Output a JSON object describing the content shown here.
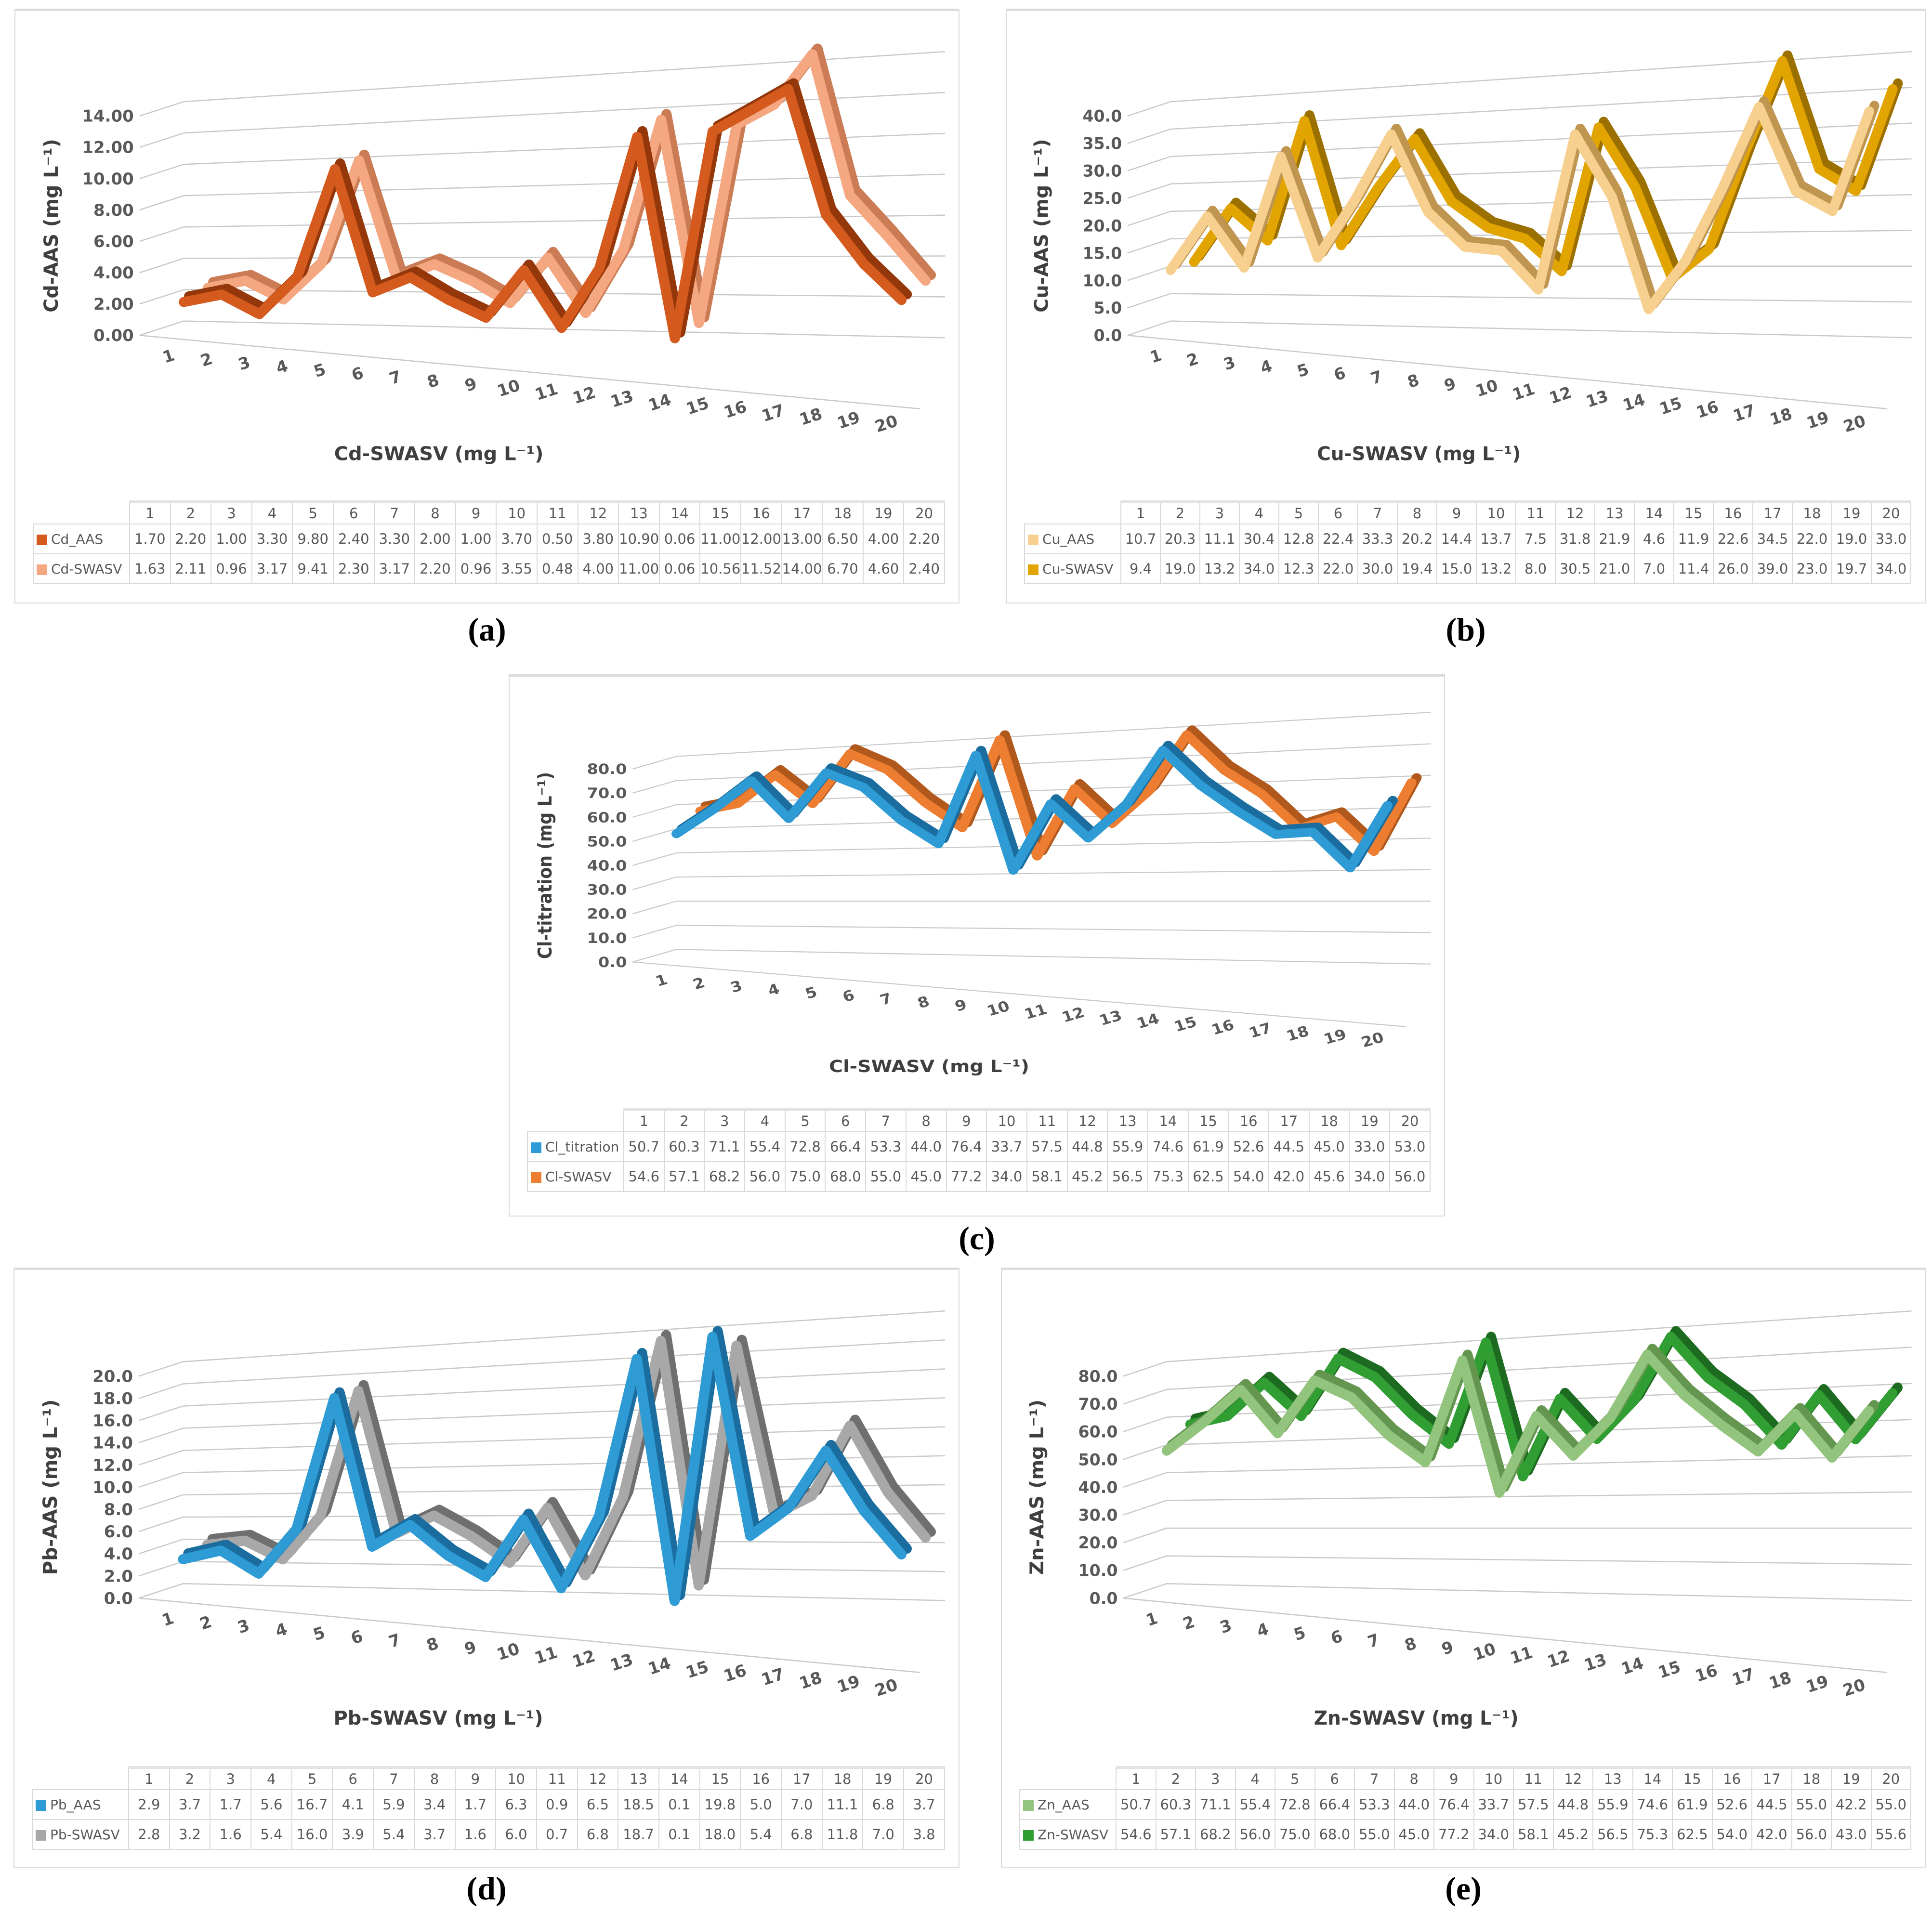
{
  "page": {
    "background": "#ffffff"
  },
  "chart_data": [
    {
      "type": "line",
      "variant": "3d-line",
      "panel_label": "(a)",
      "x_axis_title": "Cd-SWASV (mg L⁻¹)",
      "y_axis_title": "Cd-AAS (mg L⁻¹)",
      "categories": [
        "1",
        "2",
        "3",
        "4",
        "5",
        "6",
        "7",
        "8",
        "9",
        "10",
        "11",
        "12",
        "13",
        "14",
        "15",
        "16",
        "17",
        "18",
        "19",
        "20"
      ],
      "ylim": [
        0,
        14
      ],
      "ytick_step": 2,
      "ytick_decimals": 2,
      "grid": true,
      "legend_position": "table-left",
      "series": [
        {
          "name": "Cd_AAS",
          "color": "#d45a1d",
          "edge_color": "#94380b",
          "values": [
            "1.70",
            "2.20",
            "1.00",
            "3.30",
            "9.80",
            "2.40",
            "3.30",
            "2.00",
            "1.00",
            "3.70",
            "0.50",
            "3.80",
            "10.90",
            "0.06",
            "11.00",
            "12.00",
            "13.00",
            "6.50",
            "4.00",
            "2.20"
          ]
        },
        {
          "name": "Cd-SWASV",
          "color": "#f4a781",
          "edge_color": "#cb7c55",
          "values": [
            "1.63",
            "2.11",
            "0.96",
            "3.17",
            "9.41",
            "2.30",
            "3.17",
            "2.20",
            "0.96",
            "3.55",
            "0.48",
            "4.00",
            "11.00",
            "0.06",
            "10.56",
            "11.52",
            "14.00",
            "6.70",
            "4.60",
            "2.40"
          ]
        }
      ]
    },
    {
      "type": "line",
      "variant": "3d-line",
      "panel_label": "(b)",
      "x_axis_title": "Cu-SWASV (mg L⁻¹)",
      "y_axis_title": "Cu-AAS (mg L⁻¹)",
      "categories": [
        "1",
        "2",
        "3",
        "4",
        "5",
        "6",
        "7",
        "8",
        "9",
        "10",
        "11",
        "12",
        "13",
        "14",
        "15",
        "16",
        "17",
        "18",
        "19",
        "20"
      ],
      "ylim": [
        0,
        40
      ],
      "ytick_step": 5,
      "ytick_decimals": 1,
      "grid": true,
      "legend_position": "table-left",
      "series": [
        {
          "name": "Cu_AAS",
          "color": "#f7cf8e",
          "edge_color": "#c0954f",
          "values": [
            "10.7",
            "20.3",
            "11.1",
            "30.4",
            "12.8",
            "22.4",
            "33.3",
            "20.2",
            "14.4",
            "13.7",
            "7.5",
            "31.8",
            "21.9",
            "4.6",
            "11.9",
            "22.6",
            "34.5",
            "22.0",
            "19.0",
            "33.0"
          ]
        },
        {
          "name": "Cu-SWASV",
          "color": "#e2a400",
          "edge_color": "#9c7000",
          "values": [
            "9.4",
            "19.0",
            "13.2",
            "34.0",
            "12.3",
            "22.0",
            "30.0",
            "19.4",
            "15.0",
            "13.2",
            "8.0",
            "30.5",
            "21.0",
            "7.0",
            "11.4",
            "26.0",
            "39.0",
            "23.0",
            "19.7",
            "34.0"
          ]
        }
      ]
    },
    {
      "type": "line",
      "variant": "3d-line",
      "panel_label": "(c)",
      "x_axis_title": "Cl-SWASV (mg L⁻¹)",
      "y_axis_title": "Cl-titration (mg L⁻¹)",
      "categories": [
        "1",
        "2",
        "3",
        "4",
        "5",
        "6",
        "7",
        "8",
        "9",
        "10",
        "11",
        "12",
        "13",
        "14",
        "15",
        "16",
        "17",
        "18",
        "19",
        "20"
      ],
      "ylim": [
        0,
        80
      ],
      "ytick_step": 10,
      "ytick_decimals": 1,
      "grid": true,
      "legend_position": "table-left",
      "series": [
        {
          "name": "Cl_titration",
          "color": "#2e9bd5",
          "edge_color": "#1a6d9e",
          "values": [
            "50.7",
            "60.3",
            "71.1",
            "55.4",
            "72.8",
            "66.4",
            "53.3",
            "44.0",
            "76.4",
            "33.7",
            "57.5",
            "44.8",
            "55.9",
            "74.6",
            "61.9",
            "52.6",
            "44.5",
            "45.0",
            "33.0",
            "53.0"
          ]
        },
        {
          "name": "Cl-SWASV",
          "color": "#ed7d31",
          "edge_color": "#b1581c",
          "values": [
            "54.6",
            "57.1",
            "68.2",
            "56.0",
            "75.0",
            "68.0",
            "55.0",
            "45.0",
            "77.2",
            "34.0",
            "58.1",
            "45.2",
            "56.5",
            "75.3",
            "62.5",
            "54.0",
            "42.0",
            "45.6",
            "34.0",
            "56.0"
          ]
        }
      ]
    },
    {
      "type": "line",
      "variant": "3d-line",
      "panel_label": "(d)",
      "x_axis_title": "Pb-SWASV (mg L⁻¹)",
      "y_axis_title": "Pb-AAS (mg L⁻¹)",
      "categories": [
        "1",
        "2",
        "3",
        "4",
        "5",
        "6",
        "7",
        "8",
        "9",
        "10",
        "11",
        "12",
        "13",
        "14",
        "15",
        "16",
        "17",
        "18",
        "19",
        "20"
      ],
      "ylim": [
        0,
        20
      ],
      "ytick_step": 2,
      "ytick_decimals": 1,
      "grid": true,
      "legend_position": "table-left",
      "series": [
        {
          "name": "Pb_AAS",
          "color": "#2e9bd5",
          "edge_color": "#1a6d9e",
          "values": [
            "2.9",
            "3.7",
            "1.7",
            "5.6",
            "16.7",
            "4.1",
            "5.9",
            "3.4",
            "1.7",
            "6.3",
            "0.9",
            "6.5",
            "18.5",
            "0.1",
            "19.8",
            "5.0",
            "7.0",
            "11.1",
            "6.8",
            "3.7"
          ]
        },
        {
          "name": "Pb-SWASV",
          "color": "#a8a8a8",
          "edge_color": "#6f6f6f",
          "values": [
            "2.8",
            "3.2",
            "1.6",
            "5.4",
            "16.0",
            "3.9",
            "5.4",
            "3.7",
            "1.6",
            "6.0",
            "0.7",
            "6.8",
            "18.7",
            "0.1",
            "18.0",
            "5.4",
            "6.8",
            "11.8",
            "7.0",
            "3.8"
          ]
        }
      ]
    },
    {
      "type": "line",
      "variant": "3d-line",
      "panel_label": "(e)",
      "x_axis_title": "Zn-SWASV (mg L⁻¹)",
      "y_axis_title": "Zn-AAS (mg L⁻¹)",
      "categories": [
        "1",
        "2",
        "3",
        "4",
        "5",
        "6",
        "7",
        "8",
        "9",
        "10",
        "11",
        "12",
        "13",
        "14",
        "15",
        "16",
        "17",
        "18",
        "19",
        "20"
      ],
      "ylim": [
        0,
        80
      ],
      "ytick_step": 10,
      "ytick_decimals": 1,
      "grid": true,
      "legend_position": "table-left",
      "series": [
        {
          "name": "Zn_AAS",
          "color": "#93c47d",
          "edge_color": "#64964f",
          "values": [
            "50.7",
            "60.3",
            "71.1",
            "55.4",
            "72.8",
            "66.4",
            "53.3",
            "44.0",
            "76.4",
            "33.7",
            "57.5",
            "44.8",
            "55.9",
            "74.6",
            "61.9",
            "52.6",
            "44.5",
            "55.0",
            "42.2",
            "55.0"
          ]
        },
        {
          "name": "Zn-SWASV",
          "color": "#319e33",
          "edge_color": "#1d6b20",
          "values": [
            "54.6",
            "57.1",
            "68.2",
            "56.0",
            "75.0",
            "68.0",
            "55.0",
            "45.0",
            "77.2",
            "34.0",
            "58.1",
            "45.2",
            "56.5",
            "75.3",
            "62.5",
            "54.0",
            "42.0",
            "56.0",
            "43.0",
            "55.6"
          ]
        }
      ]
    }
  ]
}
